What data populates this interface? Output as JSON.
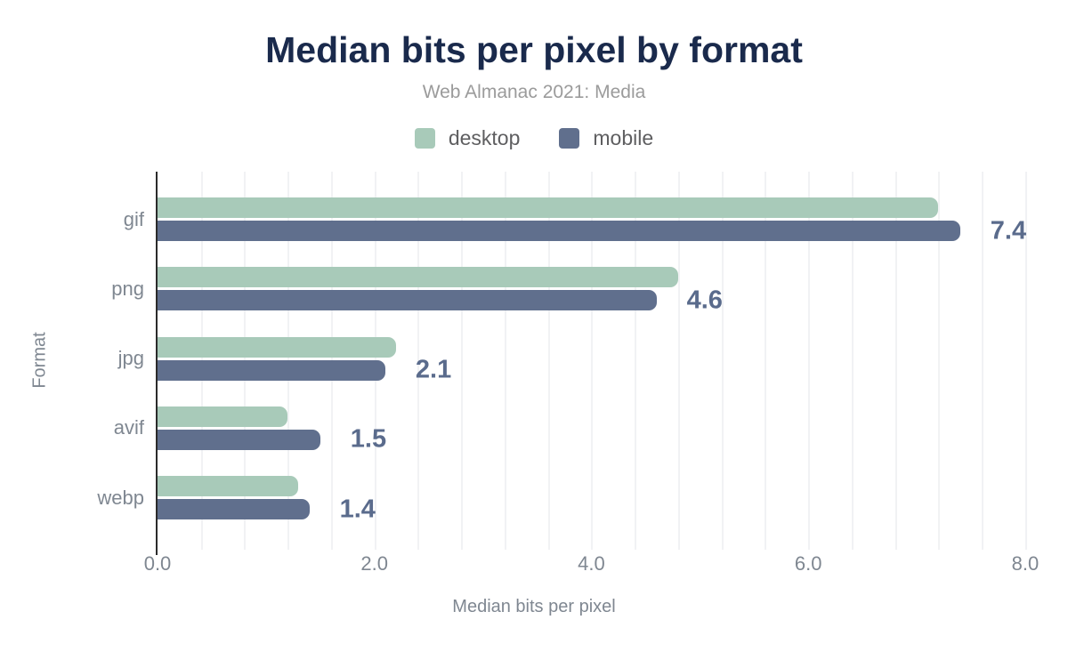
{
  "header": {
    "title": "Median bits per pixel by format",
    "subtitle": "Web Almanac 2021: Media"
  },
  "colors": {
    "title": "#1a2a4c",
    "subtitle": "#9b9b9b",
    "desktop": "#a8cab9",
    "mobile": "#606f8d",
    "value_label": "#5a6b8c",
    "axis_text": "#7f8791",
    "axis_line": "#2b2b2b",
    "gridline": "#f1f2f4",
    "background": "#ffffff"
  },
  "chart_data": {
    "type": "bar",
    "orientation": "horizontal",
    "title": "Median bits per pixel by format",
    "subtitle": "Web Almanac 2021: Media",
    "categories": [
      "gif",
      "png",
      "jpg",
      "avif",
      "webp"
    ],
    "series": [
      {
        "name": "desktop",
        "color": "#a8cab9",
        "values": [
          7.2,
          4.8,
          2.2,
          1.2,
          1.3
        ]
      },
      {
        "name": "mobile",
        "color": "#606f8d",
        "values": [
          7.4,
          4.6,
          2.1,
          1.5,
          1.4
        ]
      }
    ],
    "value_labels": {
      "series": "mobile",
      "values": [
        "7.4",
        "4.6",
        "2.1",
        "1.5",
        "1.4"
      ]
    },
    "xlabel": "Median bits per pixel",
    "ylabel": "Format",
    "x_ticks": [
      "0.0",
      "2.0",
      "4.0",
      "6.0",
      "8.0"
    ],
    "x_tick_values": [
      0,
      2,
      4,
      6,
      8
    ],
    "xlim": [
      0,
      8.37
    ],
    "grid_interval": 0.4,
    "grid": "vertical",
    "legend_position": "top"
  }
}
